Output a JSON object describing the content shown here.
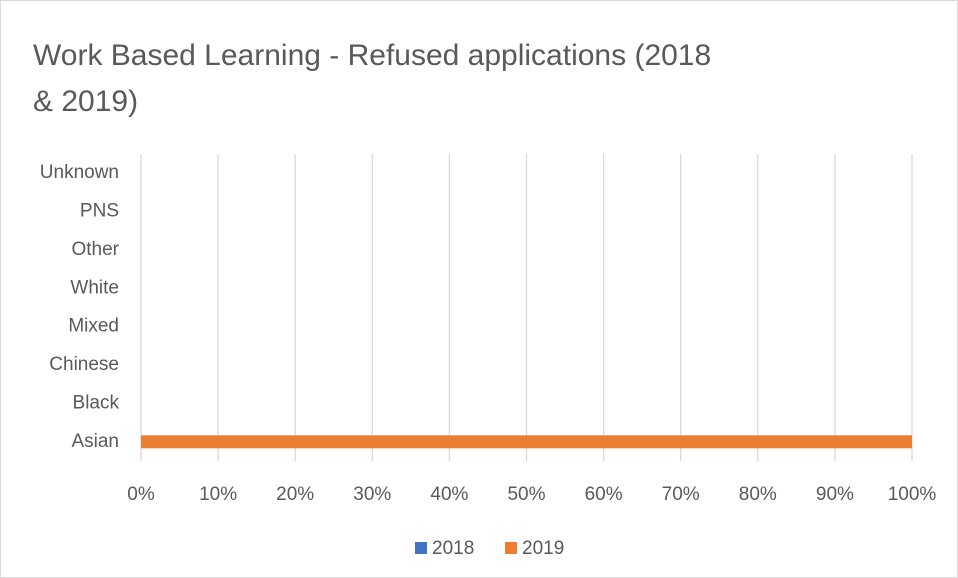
{
  "chart_data": {
    "type": "bar",
    "orientation": "horizontal",
    "title": "Work Based Learning - Refused applications (2018 & 2019)",
    "categories": [
      "Asian",
      "Black",
      "Chinese",
      "Mixed",
      "White",
      "Other",
      "PNS",
      "Unknown"
    ],
    "series": [
      {
        "name": "2018",
        "color": "#4472c4",
        "values": [
          0,
          0,
          0,
          0,
          0,
          0,
          0,
          0
        ]
      },
      {
        "name": "2019",
        "color": "#ed7d31",
        "values": [
          100,
          0,
          0,
          0,
          0,
          0,
          0,
          0
        ]
      }
    ],
    "xlim": [
      0,
      100
    ],
    "xticks": [
      {
        "value": 0,
        "label": "0%"
      },
      {
        "value": 10,
        "label": "10%"
      },
      {
        "value": 20,
        "label": "20%"
      },
      {
        "value": 30,
        "label": "30%"
      },
      {
        "value": 40,
        "label": "40%"
      },
      {
        "value": 50,
        "label": "50%"
      },
      {
        "value": 60,
        "label": "60%"
      },
      {
        "value": 70,
        "label": "70%"
      },
      {
        "value": 80,
        "label": "80%"
      },
      {
        "value": 90,
        "label": "90%"
      },
      {
        "value": 100,
        "label": "100%"
      }
    ],
    "grid": true,
    "legend": "bottom"
  }
}
